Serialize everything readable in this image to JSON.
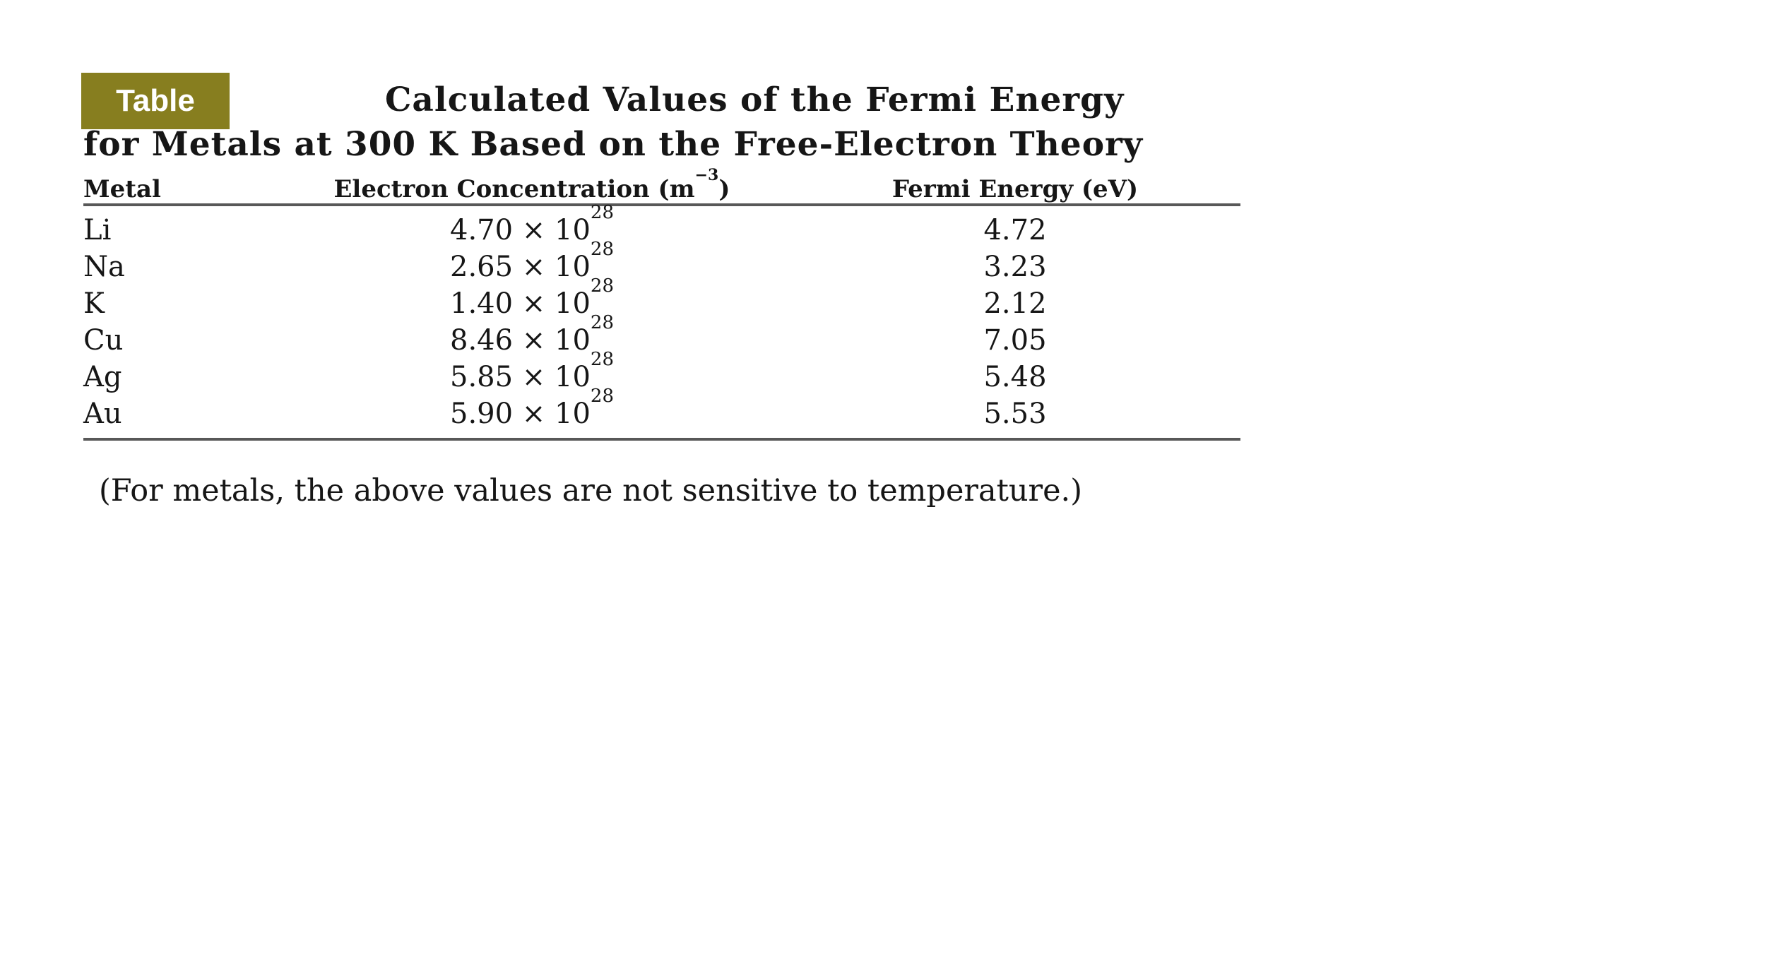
{
  "badge": {
    "label": "Table",
    "background_color": "#877e1f",
    "text_color": "#ffffff"
  },
  "title": {
    "line1": "Calculated Values of the Fermi Energy",
    "line2": "for Metals at 300 K Based on the Free-Electron Theory"
  },
  "table": {
    "columns": {
      "metal": "Metal",
      "concentration_base": "Electron Concentration (m",
      "concentration_exponent": "−3",
      "concentration_close": ")",
      "fermi": "Fermi Energy (eV)"
    },
    "rows": [
      {
        "metal": "Li",
        "concentration_base": "4.70 × 10",
        "concentration_exponent": "28",
        "fermi_energy": "4.72"
      },
      {
        "metal": "Na",
        "concentration_base": "2.65 × 10",
        "concentration_exponent": "28",
        "fermi_energy": "3.23"
      },
      {
        "metal": "K",
        "concentration_base": "1.40 × 10",
        "concentration_exponent": "28",
        "fermi_energy": "2.12"
      },
      {
        "metal": "Cu",
        "concentration_base": "8.46 × 10",
        "concentration_exponent": "28",
        "fermi_energy": "7.05"
      },
      {
        "metal": "Ag",
        "concentration_base": "5.85 × 10",
        "concentration_exponent": "28",
        "fermi_energy": "5.48"
      },
      {
        "metal": "Au",
        "concentration_base": "5.90 × 10",
        "concentration_exponent": "28",
        "fermi_energy": "5.53"
      }
    ],
    "rule_color": "#585858"
  },
  "footnote": "(For metals, the above values are not sensitive to temperature.)",
  "chart_data": {
    "type": "table",
    "title": "Calculated Values of the Fermi Energy for Metals at 300 K Based on the Free-Electron Theory",
    "columns": [
      "Metal",
      "Electron Concentration (m^-3)",
      "Fermi Energy (eV)"
    ],
    "rows": [
      [
        "Li",
        "4.70 x 10^28",
        4.72
      ],
      [
        "Na",
        "2.65 x 10^28",
        3.23
      ],
      [
        "K",
        "1.40 x 10^28",
        2.12
      ],
      [
        "Cu",
        "8.46 x 10^28",
        7.05
      ],
      [
        "Ag",
        "5.85 x 10^28",
        5.48
      ],
      [
        "Au",
        "5.90 x 10^28",
        5.53
      ]
    ],
    "note": "(For metals, the above values are not sensitive to temperature.)"
  }
}
